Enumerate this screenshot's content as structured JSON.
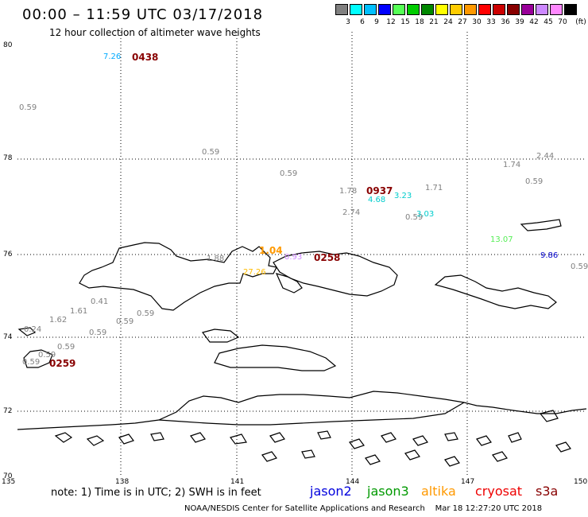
{
  "header": {
    "title": "00:00 – 11:59 UTC 03/17/2018",
    "subtitle": "12 hour collection of altimeter wave heights"
  },
  "scale": {
    "unit_label": "(ft)",
    "bins": [
      {
        "label": "3",
        "color": "#808080"
      },
      {
        "label": "6",
        "color": "#00ffff"
      },
      {
        "label": "9",
        "color": "#00bfff"
      },
      {
        "label": "12",
        "color": "#0000ff"
      },
      {
        "label": "15",
        "color": "#55ff55"
      },
      {
        "label": "18",
        "color": "#00cc00"
      },
      {
        "label": "21",
        "color": "#008800"
      },
      {
        "label": "24",
        "color": "#ffff00"
      },
      {
        "label": "27",
        "color": "#ffcc00"
      },
      {
        "label": "30",
        "color": "#ff9900"
      },
      {
        "label": "33",
        "color": "#ff0000"
      },
      {
        "label": "36",
        "color": "#cc0000"
      },
      {
        "label": "39",
        "color": "#880000"
      },
      {
        "label": "42",
        "color": "#990099"
      },
      {
        "label": "45",
        "color": "#cc88ff"
      },
      {
        "label": "70",
        "color": "#ff88ff"
      },
      {
        "label": "",
        "color": "#000000"
      }
    ]
  },
  "axes": {
    "lat_labels": [
      "80",
      "78",
      "76",
      "74",
      "72",
      "70"
    ],
    "lon_labels": [
      "135",
      "138",
      "141",
      "144",
      "147",
      "150"
    ]
  },
  "observations": [
    {
      "v": "7.26",
      "color": "#00aaff"
    },
    {
      "v": "0.59",
      "color": "#808080"
    },
    {
      "v": "0.59",
      "color": "#808080"
    },
    {
      "v": "0.59",
      "color": "#808080"
    },
    {
      "v": "1.78",
      "color": "#808080"
    },
    {
      "v": "4.68",
      "color": "#00cccc"
    },
    {
      "v": "3.23",
      "color": "#00cccc"
    },
    {
      "v": "1.71",
      "color": "#808080"
    },
    {
      "v": "2.74",
      "color": "#808080"
    },
    {
      "v": "0.59",
      "color": "#808080"
    },
    {
      "v": "3.03",
      "color": "#00cccc"
    },
    {
      "v": "1.74",
      "color": "#808080"
    },
    {
      "v": "2.44",
      "color": "#808080"
    },
    {
      "v": "0.59",
      "color": "#808080"
    },
    {
      "v": "13.07",
      "color": "#55ee55"
    },
    {
      "v": "9.86",
      "color": "#0000cc"
    },
    {
      "v": "0.59",
      "color": "#808080"
    },
    {
      "v": "1.04",
      "color": "#ff9900"
    },
    {
      "v": "1.88",
      "color": "#808080"
    },
    {
      "v": "27.26",
      "color": "#ffbb00"
    },
    {
      "v": "0.93",
      "color": "#cc88ff"
    },
    {
      "v": "0.41",
      "color": "#808080"
    },
    {
      "v": "1.61",
      "color": "#808080"
    },
    {
      "v": "1.62",
      "color": "#808080"
    },
    {
      "v": "0.59",
      "color": "#808080"
    },
    {
      "v": "0.59",
      "color": "#808080"
    },
    {
      "v": "0.59",
      "color": "#808080"
    },
    {
      "v": "0.24",
      "color": "#808080"
    },
    {
      "v": "0.59",
      "color": "#808080"
    },
    {
      "v": "0.59",
      "color": "#808080"
    },
    {
      "v": "0.59",
      "color": "#808080"
    }
  ],
  "pass_times": [
    {
      "t": "0438",
      "color": "#880000"
    },
    {
      "t": "0937",
      "color": "#880000"
    },
    {
      "t": "0258",
      "color": "#880000"
    },
    {
      "t": "0259",
      "color": "#880000"
    }
  ],
  "footer": {
    "note": "note: 1) Time is in UTC; 2) SWH is in feet",
    "satellites": [
      {
        "name": "jason2",
        "color": "#0000dd"
      },
      {
        "name": "jason3",
        "color": "#009900"
      },
      {
        "name": "altika",
        "color": "#ff9900"
      },
      {
        "name": "cryosat",
        "color": "#ee0000"
      },
      {
        "name": "s3a",
        "color": "#880000"
      }
    ],
    "credit": "NOAA/NESDIS Center for Satellite Applications and Research",
    "timestamp": "Mar 18 12:27:20 UTC 2018"
  }
}
